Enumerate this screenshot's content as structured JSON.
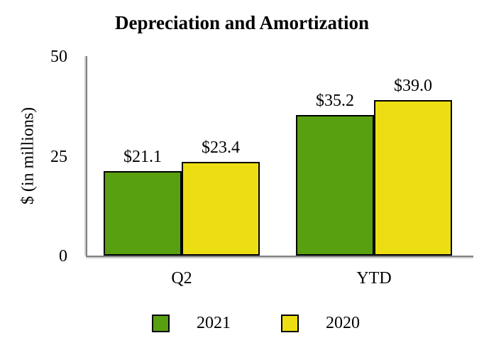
{
  "chart_data": {
    "type": "bar",
    "title": "Depreciation and Amortization",
    "ylabel": "$ (in millions)",
    "xlabel": "",
    "categories": [
      "Q2",
      "YTD"
    ],
    "series": [
      {
        "name": "2021",
        "color": "#58A00F",
        "values": [
          21.1,
          35.2
        ],
        "labels": [
          "$21.1",
          "$35.2"
        ]
      },
      {
        "name": "2020",
        "color": "#EDDE13",
        "values": [
          23.4,
          39.0
        ],
        "labels": [
          "$23.4",
          "$39.0"
        ]
      }
    ],
    "ylim": [
      0,
      50
    ],
    "yticks": [
      0,
      25,
      50
    ],
    "grid": false,
    "legend_position": "bottom"
  },
  "colors": {
    "axis": "#7f7f7f",
    "bar_border": "#000000",
    "text": "#000000",
    "background": "#ffffff"
  }
}
